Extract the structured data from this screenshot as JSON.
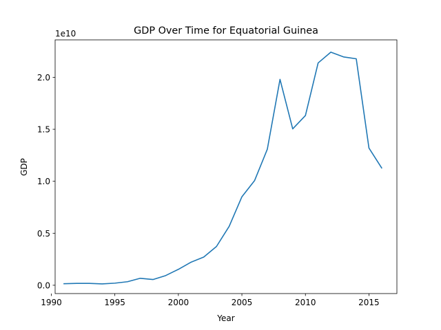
{
  "chart_data": {
    "type": "line",
    "title": "GDP Over Time for Equatorial Guinea",
    "xlabel": "Year",
    "ylabel": "GDP",
    "y_offset_label": "1e10",
    "xlim": [
      1990.3,
      2017.2
    ],
    "ylim": [
      -0.08,
      2.36
    ],
    "x_ticks": [
      1990,
      1995,
      2000,
      2005,
      2010,
      2015
    ],
    "x_tick_labels": [
      "1990",
      "1995",
      "2000",
      "2005",
      "2010",
      "2015"
    ],
    "y_ticks": [
      0.0,
      0.5,
      1.0,
      1.5,
      2.0
    ],
    "y_tick_labels": [
      "0.0",
      "0.5",
      "1.0",
      "1.5",
      "2.0"
    ],
    "grid": false,
    "line_color": "#1f77b4",
    "series": [
      {
        "x": [
          1991,
          1992,
          1993,
          1994,
          1995,
          1996,
          1997,
          1998,
          1999,
          2000,
          2001,
          2002,
          2003,
          2004,
          2005,
          2006,
          2007,
          2008,
          2009,
          2010,
          2011,
          2012,
          2013,
          2014,
          2015,
          2016
        ],
        "values": [
          0.015,
          0.018,
          0.018,
          0.013,
          0.02,
          0.034,
          0.067,
          0.055,
          0.093,
          0.153,
          0.222,
          0.271,
          0.373,
          0.567,
          0.851,
          1.007,
          1.308,
          1.98,
          1.504,
          1.632,
          2.138,
          2.242,
          2.196,
          2.178,
          1.32,
          1.128
        ]
      }
    ]
  }
}
